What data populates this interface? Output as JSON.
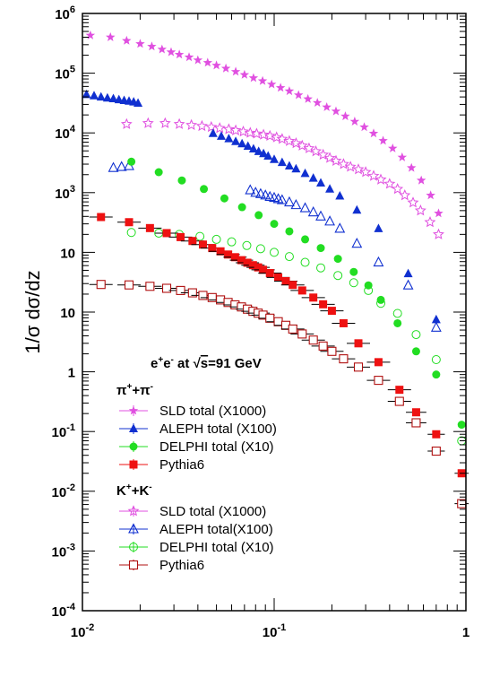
{
  "chart_data": {
    "type": "scatter",
    "title": "",
    "xlabel": "",
    "ylabel": "1/σ dσ/dz",
    "x_scale": "log",
    "y_scale": "log",
    "xlim": [
      0.01,
      1
    ],
    "ylim": [
      0.0001,
      1000000
    ],
    "grid": false,
    "x_ticks": [
      {
        "value": 0.01,
        "base": "10",
        "exp": "-2"
      },
      {
        "value": 0.1,
        "base": "10",
        "exp": "-1"
      },
      {
        "value": 1,
        "base": "1",
        "exp": ""
      }
    ],
    "y_ticks": [
      {
        "value": 1000000,
        "base": "10",
        "exp": "6"
      },
      {
        "value": 100000,
        "base": "10",
        "exp": "5"
      },
      {
        "value": 10000,
        "base": "10",
        "exp": "4"
      },
      {
        "value": 1000,
        "base": "10",
        "exp": "3"
      },
      {
        "value": 100,
        "base": "10",
        "exp": ""
      },
      {
        "value": 10,
        "base": "10",
        "exp": ""
      },
      {
        "value": 1,
        "base": "1",
        "exp": ""
      },
      {
        "value": 0.1,
        "base": "10",
        "exp": "-1"
      },
      {
        "value": 0.01,
        "base": "10",
        "exp": "-2"
      },
      {
        "value": 0.001,
        "base": "10",
        "exp": "-3"
      },
      {
        "value": 0.0001,
        "base": "10",
        "exp": "-4"
      }
    ],
    "annotation": {
      "parts": [
        "e",
        "+",
        "e",
        "-",
        " at ",
        "√",
        "s",
        "=91 GeV"
      ]
    },
    "legend": {
      "placement": "bottom-left",
      "groups": [
        {
          "header": {
            "base1": "π",
            "sup1": "+",
            "mid": "+π",
            "sup2": "-"
          },
          "entries": [
            {
              "label": "SLD total (X1000)",
              "series": "sld_pi"
            },
            {
              "label": "ALEPH total (X100)",
              "series": "aleph_pi"
            },
            {
              "label": "DELPHI total (X10)",
              "series": "delphi_pi"
            },
            {
              "label": "Pythia6",
              "series": "pythia_pi"
            }
          ]
        },
        {
          "header": {
            "base1": "K",
            "sup1": "+",
            "mid": "+K",
            "sup2": "-"
          },
          "entries": [
            {
              "label": "SLD total (X1000)",
              "series": "sld_k"
            },
            {
              "label": "ALEPH total(X100)",
              "series": "aleph_k"
            },
            {
              "label": "DELPHI total (X10)",
              "series": "delphi_k"
            },
            {
              "label": "Pythia6",
              "series": "pythia_k"
            }
          ]
        }
      ]
    },
    "series": [
      {
        "id": "sld_pi",
        "color": "#e050e0",
        "marker": "star-filled",
        "x": [
          0.011,
          0.014,
          0.017,
          0.02,
          0.023,
          0.026,
          0.029,
          0.032,
          0.036,
          0.04,
          0.045,
          0.05,
          0.056,
          0.063,
          0.07,
          0.078,
          0.087,
          0.097,
          0.108,
          0.12,
          0.134,
          0.15,
          0.168,
          0.188,
          0.21,
          0.235,
          0.263,
          0.295,
          0.33,
          0.37,
          0.415,
          0.465,
          0.52,
          0.585,
          0.655,
          0.72
        ],
        "y": [
          430000,
          400000,
          350000,
          310000,
          280000,
          250000,
          225000,
          205000,
          185000,
          165000,
          150000,
          135000,
          120000,
          106000,
          94000,
          83000,
          74000,
          65000,
          57000,
          50000,
          43000,
          37000,
          32000,
          27000,
          23000,
          19000,
          15500,
          12500,
          9800,
          7400,
          5500,
          3900,
          2600,
          1600,
          900,
          450
        ]
      },
      {
        "id": "sld_k",
        "color": "#e050e0",
        "marker": "star-open",
        "x": [
          0.017,
          0.022,
          0.027,
          0.032,
          0.037,
          0.042,
          0.047,
          0.052,
          0.058,
          0.063,
          0.069,
          0.075,
          0.081,
          0.088,
          0.095,
          0.103,
          0.11,
          0.12,
          0.13,
          0.14,
          0.152,
          0.165,
          0.18,
          0.195,
          0.21,
          0.23,
          0.25,
          0.275,
          0.3,
          0.33,
          0.36,
          0.4,
          0.44,
          0.48,
          0.53,
          0.58,
          0.65,
          0.72
        ],
        "y": [
          14000,
          14500,
          14500,
          14000,
          13500,
          13000,
          12500,
          12000,
          11500,
          11000,
          10500,
          10000,
          9700,
          9300,
          8900,
          8400,
          7900,
          7300,
          6700,
          6100,
          5500,
          4900,
          4300,
          3800,
          3400,
          3000,
          2700,
          2450,
          2200,
          1900,
          1650,
          1400,
          1150,
          900,
          680,
          500,
          320,
          200
        ]
      },
      {
        "id": "aleph_pi",
        "color": "#1030d0",
        "marker": "triangle-filled",
        "x": [
          0.0105,
          0.0115,
          0.0125,
          0.0135,
          0.0145,
          0.0155,
          0.0165,
          0.0175,
          0.0185,
          0.0195,
          0.048,
          0.053,
          0.058,
          0.063,
          0.068,
          0.073,
          0.078,
          0.083,
          0.088,
          0.093,
          0.1,
          0.11,
          0.12,
          0.13,
          0.145,
          0.16,
          0.175,
          0.195,
          0.22,
          0.27,
          0.35,
          0.5,
          0.7
        ],
        "y": [
          44000,
          42000,
          40000,
          38500,
          37500,
          36000,
          35000,
          34000,
          33000,
          31500,
          9800,
          8800,
          8000,
          7200,
          6600,
          6000,
          5400,
          4900,
          4500,
          4100,
          3600,
          3200,
          2800,
          2500,
          2100,
          1750,
          1450,
          1150,
          880,
          510,
          250,
          44,
          7.5
        ]
      },
      {
        "id": "aleph_k",
        "color": "#1030d0",
        "marker": "triangle-open",
        "x": [
          0.0145,
          0.016,
          0.0175,
          0.075,
          0.08,
          0.085,
          0.09,
          0.095,
          0.1,
          0.105,
          0.11,
          0.12,
          0.13,
          0.145,
          0.16,
          0.175,
          0.195,
          0.22,
          0.27,
          0.35,
          0.5,
          0.7
        ],
        "y": [
          2600,
          2700,
          2800,
          1100,
          1000,
          950,
          900,
          850,
          820,
          780,
          750,
          690,
          620,
          550,
          470,
          400,
          330,
          250,
          140,
          68,
          28,
          5.5
        ]
      },
      {
        "id": "delphi_pi",
        "color": "#22dd22",
        "marker": "circle-filled",
        "x": [
          0.018,
          0.025,
          0.033,
          0.043,
          0.055,
          0.068,
          0.083,
          0.1,
          0.12,
          0.145,
          0.175,
          0.215,
          0.26,
          0.31,
          0.36,
          0.44,
          0.55,
          0.7,
          0.95
        ],
        "y": [
          3300,
          2200,
          1600,
          1150,
          800,
          570,
          420,
          300,
          225,
          165,
          118,
          78,
          47,
          28,
          16,
          6.5,
          2.2,
          0.9,
          0.13
        ]
      },
      {
        "id": "delphi_k",
        "color": "#22dd22",
        "marker": "circle-open",
        "x": [
          0.018,
          0.025,
          0.032,
          0.041,
          0.05,
          0.06,
          0.072,
          0.085,
          0.1,
          0.12,
          0.145,
          0.175,
          0.215,
          0.26,
          0.31,
          0.36,
          0.44,
          0.55,
          0.7,
          0.95
        ],
        "y": [
          215,
          210,
          200,
          185,
          165,
          150,
          130,
          115,
          100,
          85,
          68,
          55,
          41,
          31,
          23,
          14,
          9.5,
          4.2,
          1.6,
          0.07
        ]
      },
      {
        "id": "pythia_pi",
        "color": "#ee1111",
        "marker": "square-filled",
        "xerr": true,
        "x": [
          0.0125,
          0.0175,
          0.0225,
          0.0275,
          0.0325,
          0.0375,
          0.0425,
          0.0475,
          0.0525,
          0.0575,
          0.0625,
          0.0675,
          0.0725,
          0.0775,
          0.0825,
          0.0875,
          0.095,
          0.105,
          0.115,
          0.125,
          0.14,
          0.16,
          0.18,
          0.2,
          0.23,
          0.275,
          0.35,
          0.45,
          0.55,
          0.7,
          0.95
        ],
        "y": [
          390,
          320,
          255,
          210,
          180,
          155,
          135,
          118,
          104,
          92,
          83,
          74,
          67,
          61,
          56,
          51,
          45,
          38,
          33,
          28.5,
          23,
          17.5,
          13.5,
          10.5,
          6.5,
          3,
          1.45,
          0.5,
          0.21,
          0.09,
          0.02
        ]
      },
      {
        "id": "pythia_k",
        "color": "#b01010",
        "marker": "square-open",
        "xerr": true,
        "x": [
          0.0125,
          0.0175,
          0.0225,
          0.0275,
          0.0325,
          0.0375,
          0.0425,
          0.0475,
          0.0525,
          0.0575,
          0.0625,
          0.0675,
          0.0725,
          0.0775,
          0.0825,
          0.0875,
          0.095,
          0.105,
          0.115,
          0.125,
          0.14,
          0.16,
          0.18,
          0.2,
          0.23,
          0.275,
          0.35,
          0.45,
          0.55,
          0.7,
          0.95
        ],
        "y": [
          29,
          28.5,
          27,
          25,
          23,
          21,
          19,
          17.5,
          16,
          14.5,
          13.2,
          12.2,
          11.2,
          10.3,
          9.6,
          8.9,
          7.9,
          6.9,
          6,
          5.2,
          4.3,
          3.4,
          2.7,
          2.2,
          1.65,
          1.2,
          0.72,
          0.32,
          0.14,
          0.047,
          0.0062
        ]
      }
    ]
  }
}
